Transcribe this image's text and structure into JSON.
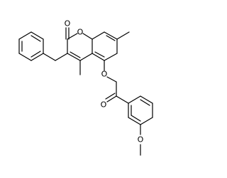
{
  "atoms": [
    {
      "label": "O"
    },
    {
      "label": "O"
    },
    {
      "label": "O"
    },
    {
      "label": "O"
    },
    {
      "label": "O"
    }
  ]
}
